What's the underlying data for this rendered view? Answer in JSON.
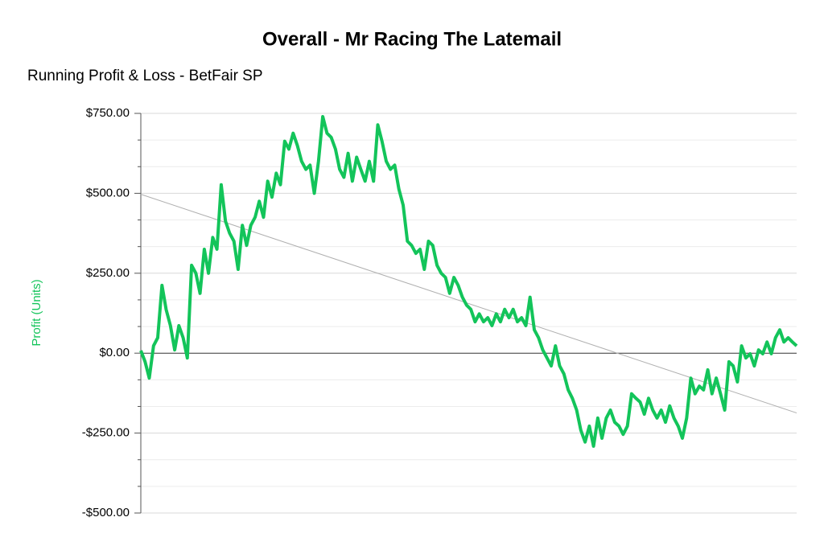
{
  "chart_data": {
    "type": "line",
    "title": "Overall - Mr Racing The Latemail",
    "subtitle": "Running Profit & Loss - BetFair SP",
    "y_label": "Profit (Units)",
    "ylim": [
      -500,
      750
    ],
    "yticks": [
      {
        "value": -500,
        "label": "-$500.00"
      },
      {
        "value": -250,
        "label": "-$250.00"
      },
      {
        "value": 0,
        "label": "$0.00"
      },
      {
        "value": 250,
        "label": "$250.00"
      },
      {
        "value": 500,
        "label": "$500.00"
      },
      {
        "value": 750,
        "label": "$750.00"
      }
    ],
    "grid": true,
    "series": [
      {
        "color": "#13c45a",
        "values": [
          8,
          -27,
          -78,
          23,
          48,
          212,
          136,
          86,
          10,
          86,
          48,
          -15,
          275,
          250,
          187,
          325,
          250,
          362,
          325,
          527,
          413,
          375,
          350,
          262,
          400,
          337,
          400,
          425,
          475,
          425,
          538,
          488,
          563,
          527,
          663,
          638,
          688,
          650,
          600,
          575,
          588,
          500,
          600,
          740,
          688,
          675,
          638,
          575,
          550,
          625,
          538,
          613,
          575,
          538,
          600,
          538,
          714,
          663,
          600,
          575,
          588,
          513,
          463,
          350,
          337,
          312,
          325,
          262,
          350,
          337,
          275,
          250,
          237,
          187,
          237,
          212,
          175,
          150,
          137,
          98,
          123,
          98,
          111,
          86,
          123,
          98,
          137,
          111,
          137,
          98,
          111,
          86,
          175,
          73,
          48,
          10,
          -15,
          -40,
          23,
          -40,
          -65,
          -115,
          -141,
          -178,
          -241,
          -278,
          -228,
          -291,
          -203,
          -266,
          -203,
          -178,
          -216,
          -228,
          -254,
          -228,
          -127,
          -141,
          -153,
          -191,
          -141,
          -178,
          -203,
          -178,
          -216,
          -165,
          -203,
          -228,
          -266,
          -203,
          -78,
          -127,
          -103,
          -115,
          -52,
          -127,
          -78,
          -127,
          -178,
          -27,
          -40,
          -90,
          23,
          -15,
          -2,
          -40,
          10,
          -2,
          35,
          -2,
          48,
          73,
          35,
          48,
          35,
          23
        ]
      }
    ],
    "trendline": {
      "color": "#b0b0b0",
      "start": 497,
      "end": -187
    }
  }
}
